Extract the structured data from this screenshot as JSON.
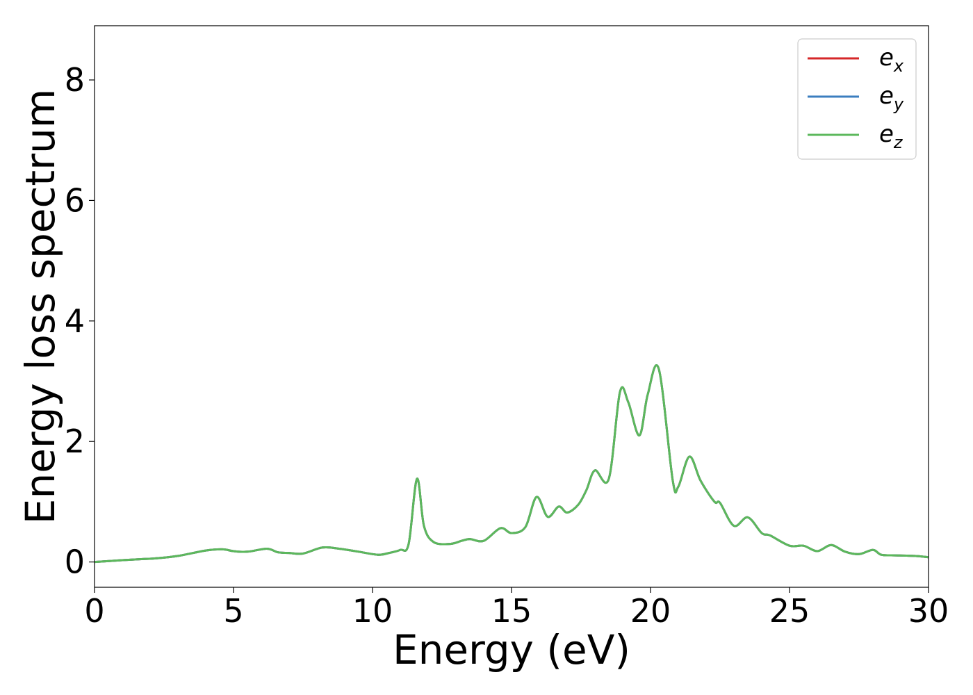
{
  "chart_data": {
    "type": "line",
    "title": "",
    "xlabel": "Energy (eV)",
    "ylabel": "Energy loss spectrum",
    "xlim": [
      0,
      30
    ],
    "ylim": [
      -0.42,
      8.9
    ],
    "xticks": [
      0,
      5,
      10,
      15,
      20,
      25,
      30
    ],
    "yticks": [
      0,
      2,
      4,
      6,
      8
    ],
    "grid": false,
    "legend_position": "top-right",
    "x": [
      0,
      1,
      1.8,
      2.2,
      3,
      4,
      4.6,
      5,
      5.5,
      6.2,
      6.6,
      7,
      7.5,
      8.2,
      8.8,
      9.5,
      10.2,
      10.6,
      11.0,
      11.3,
      11.6,
      11.85,
      12.2,
      12.8,
      13.2,
      13.5,
      14.0,
      14.6,
      15.0,
      15.5,
      15.9,
      16.3,
      16.7,
      17.0,
      17.4,
      17.7,
      18.0,
      18.5,
      18.9,
      19.2,
      19.6,
      19.9,
      20.3,
      20.8,
      21.0,
      21.4,
      21.8,
      22.3,
      22.5,
      23.0,
      23.5,
      24.0,
      24.3,
      25.0,
      25.5,
      26.0,
      26.5,
      27.0,
      27.5,
      28.0,
      28.3,
      28.8,
      29.5,
      30
    ],
    "series": [
      {
        "name": "e_x",
        "label_main": "e",
        "label_sub": "x",
        "color": "#d62728",
        "values": [
          0.0,
          0.03,
          0.05,
          0.06,
          0.1,
          0.19,
          0.21,
          0.18,
          0.17,
          0.22,
          0.16,
          0.15,
          0.14,
          0.24,
          0.22,
          0.17,
          0.12,
          0.15,
          0.2,
          0.3,
          1.38,
          0.6,
          0.33,
          0.3,
          0.35,
          0.38,
          0.35,
          0.56,
          0.48,
          0.58,
          1.08,
          0.75,
          0.92,
          0.82,
          0.95,
          1.2,
          1.52,
          1.38,
          2.82,
          2.65,
          2.1,
          2.78,
          3.2,
          1.35,
          1.25,
          1.75,
          1.35,
          1.0,
          0.98,
          0.6,
          0.74,
          0.48,
          0.44,
          0.27,
          0.27,
          0.18,
          0.28,
          0.17,
          0.13,
          0.2,
          0.12,
          0.11,
          0.1,
          0.08
        ]
      },
      {
        "name": "e_y",
        "label_main": "e",
        "label_sub": "y",
        "color": "#3b7ebf",
        "values": [
          0.0,
          0.03,
          0.05,
          0.06,
          0.1,
          0.19,
          0.21,
          0.18,
          0.17,
          0.22,
          0.16,
          0.15,
          0.14,
          0.24,
          0.22,
          0.17,
          0.12,
          0.15,
          0.2,
          0.3,
          1.38,
          0.6,
          0.33,
          0.3,
          0.35,
          0.38,
          0.35,
          0.56,
          0.48,
          0.58,
          1.08,
          0.75,
          0.92,
          0.82,
          0.95,
          1.2,
          1.52,
          1.38,
          2.82,
          2.65,
          2.1,
          2.78,
          3.2,
          1.35,
          1.25,
          1.75,
          1.35,
          1.0,
          0.98,
          0.6,
          0.74,
          0.48,
          0.44,
          0.27,
          0.27,
          0.18,
          0.28,
          0.17,
          0.13,
          0.2,
          0.12,
          0.11,
          0.1,
          0.08
        ]
      },
      {
        "name": "e_z",
        "label_main": "e",
        "label_sub": "z",
        "color": "#5cb85c",
        "values": [
          0.0,
          0.03,
          0.05,
          0.06,
          0.1,
          0.19,
          0.21,
          0.18,
          0.17,
          0.22,
          0.16,
          0.15,
          0.14,
          0.24,
          0.22,
          0.17,
          0.12,
          0.15,
          0.2,
          0.3,
          1.38,
          0.6,
          0.33,
          0.3,
          0.35,
          0.38,
          0.35,
          0.56,
          0.48,
          0.58,
          1.08,
          0.75,
          0.92,
          0.82,
          0.95,
          1.2,
          1.52,
          1.38,
          2.82,
          2.65,
          2.1,
          2.78,
          3.2,
          1.35,
          1.25,
          1.75,
          1.35,
          1.0,
          0.98,
          0.6,
          0.74,
          0.48,
          0.44,
          0.27,
          0.27,
          0.18,
          0.28,
          0.17,
          0.13,
          0.2,
          0.12,
          0.11,
          0.1,
          0.08
        ]
      }
    ]
  }
}
